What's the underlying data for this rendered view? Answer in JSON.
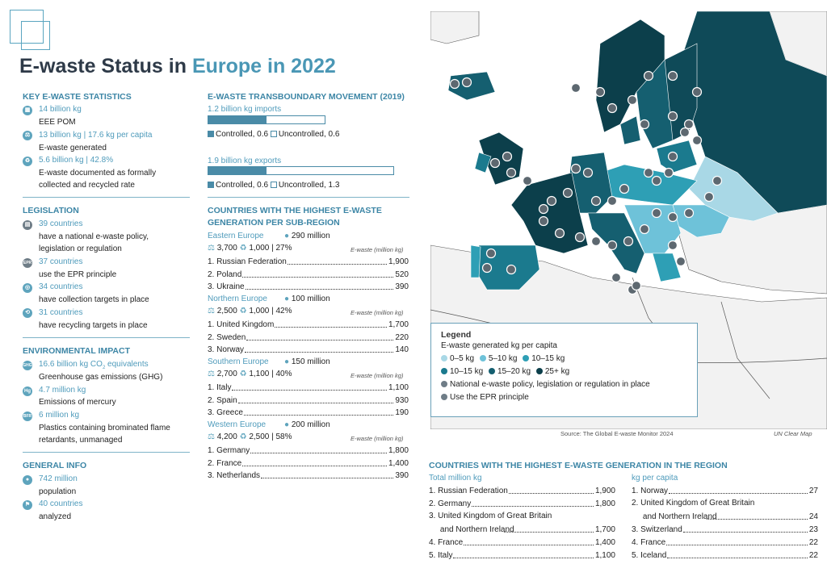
{
  "title": {
    "prefix": "E-waste Status in",
    "highlight": "Europe in 2022"
  },
  "key_stats": {
    "heading": "KEY E-WASTE STATISTICS",
    "items": [
      {
        "icon": "eee-icon",
        "value": "14 billion kg",
        "label": "EEE POM"
      },
      {
        "icon": "scale-icon",
        "value": "13 billion kg | 17.6 kg per capita",
        "label": "E-waste generated"
      },
      {
        "icon": "recycle-icon",
        "value": "5.6 billion kg | 42.8%",
        "label1": "E-waste documented as formally",
        "label2": "collected and recycled rate"
      }
    ]
  },
  "legislation": {
    "heading": "LEGISLATION",
    "items": [
      {
        "value": "39 countries",
        "label1": "have a national e-waste policy,",
        "label2": "legislation or regulation"
      },
      {
        "value": "37 countries",
        "label1": "use the EPR principle"
      },
      {
        "value": "34 countries",
        "label1": "have collection targets in place"
      },
      {
        "value": "31 countries",
        "label1": "have recycling targets in place"
      }
    ]
  },
  "environmental": {
    "heading": "ENVIRONMENTAL IMPACT",
    "items": [
      {
        "value": "16.6 billion kg CO",
        "sub": "2",
        "value_suffix": " equivalents",
        "label1": "Greenhouse gas emissions (GHG)",
        "icon_text": "GHG"
      },
      {
        "value": "4.7 million kg",
        "label1": "Emissions of mercury",
        "icon_text": "Hg"
      },
      {
        "value": "6 million kg",
        "label1": "Plastics containing brominated flame",
        "label2": "retardants, unmanaged",
        "icon_text": "BFR"
      }
    ]
  },
  "general": {
    "heading": "GENERAL INFO",
    "items": [
      {
        "value": "742 million",
        "label1": "population"
      },
      {
        "value": "40 countries",
        "label1": "analyzed"
      }
    ]
  },
  "transboundary": {
    "heading": "E-WASTE TRANSBOUNDARY MOVEMENT (2019)",
    "imports": {
      "title": "1.2 billion kg imports",
      "controlled": 0.6,
      "uncontrolled": 0.6,
      "controlled_label": "Controlled, 0.6",
      "uncontrolled_label": "Uncontrolled, 0.6"
    },
    "exports": {
      "title": "1.9 billion kg exports",
      "controlled": 0.6,
      "uncontrolled": 1.3,
      "controlled_label": "Controlled, 0.6",
      "uncontrolled_label": "Uncontrolled, 1.3"
    }
  },
  "subregions": {
    "heading1": "COUNTRIES WITH THE HIGHEST E-WASTE",
    "heading2": "GENERATION PER SUB-REGION",
    "unit_label": "E-waste (million kg)",
    "regions": [
      {
        "name": "Eastern Europe",
        "population": "290 million",
        "stats": "3,700",
        "stats2": "1,000 | 27%",
        "rows": [
          {
            "n": "1. Russian Federation",
            "v": "1,900"
          },
          {
            "n": "2. Poland",
            "v": "520"
          },
          {
            "n": "3. Ukraine",
            "v": "390"
          }
        ]
      },
      {
        "name": "Northern Europe",
        "population": "100 million",
        "stats": "2,500",
        "stats2": "1,000 | 42%",
        "rows": [
          {
            "n": "1. United Kingdom",
            "v": "1,700"
          },
          {
            "n": "2. Sweden",
            "v": "220"
          },
          {
            "n": "3. Norway",
            "v": "140"
          }
        ]
      },
      {
        "name": "Southern Europe",
        "population": "150 million",
        "stats": "2,700",
        "stats2": "1,100 | 40%",
        "rows": [
          {
            "n": "1. Italy",
            "v": "1,100"
          },
          {
            "n": "2. Spain",
            "v": "930"
          },
          {
            "n": "3. Greece",
            "v": "190"
          }
        ]
      },
      {
        "name": "Western Europe",
        "population": "200 million",
        "stats": "4,200",
        "stats2": "2,500 | 58%",
        "rows": [
          {
            "n": "1. Germany",
            "v": "1,800"
          },
          {
            "n": "2. France",
            "v": "1,400"
          },
          {
            "n": "3. Netherlands",
            "v": "390"
          }
        ]
      }
    ]
  },
  "legend": {
    "title": "Legend",
    "subtitle": "E-waste generated kg per capita",
    "classes": [
      {
        "label": "0–5 kg",
        "color": "#a9d8e6"
      },
      {
        "label": "5–10 kg",
        "color": "#6ec2d9"
      },
      {
        "label": "10–15 kg",
        "color": "#2e9fb5"
      },
      {
        "label": "10–15 kg",
        "color": "#1b7a8e"
      },
      {
        "label": "15–20 kg",
        "color": "#155f70"
      },
      {
        "label": "25+ kg",
        "color": "#0c3f4b"
      }
    ],
    "policy": "National e-waste policy, legislation or regulation in place",
    "epr": "Use the EPR principle"
  },
  "source": "Source: The Global E-waste Monitor 2024",
  "map_credit": "UN Clear Map",
  "region_top": {
    "heading": "COUNTRIES WITH THE HIGHEST E-WASTE GENERATION IN THE REGION",
    "total_title": "Total million kg",
    "percap_title": "kg per capita",
    "total": [
      {
        "n": "1. Russian Federation",
        "v": "1,900"
      },
      {
        "n": "2. Germany",
        "v": "1,800"
      },
      {
        "n": "3. United Kingdom of Great Britain",
        "n2": "and Northern Ireland",
        "v": "1,700"
      },
      {
        "n": "4. France",
        "v": "1,400"
      },
      {
        "n": "5. Italy",
        "v": "1,100"
      }
    ],
    "percap": [
      {
        "n": "1. Norway",
        "v": "27"
      },
      {
        "n": "2. United Kingdom of Great Britain",
        "n2": "and Northern Ireland",
        "v": "24"
      },
      {
        "n": "3. Switzerland",
        "v": "23"
      },
      {
        "n": "4. France",
        "v": "22"
      },
      {
        "n": "5. Iceland",
        "v": "22"
      }
    ]
  },
  "colors": {
    "accent": "#4f9bbb",
    "heading": "#3d86a6",
    "title": "#2e3a48"
  }
}
